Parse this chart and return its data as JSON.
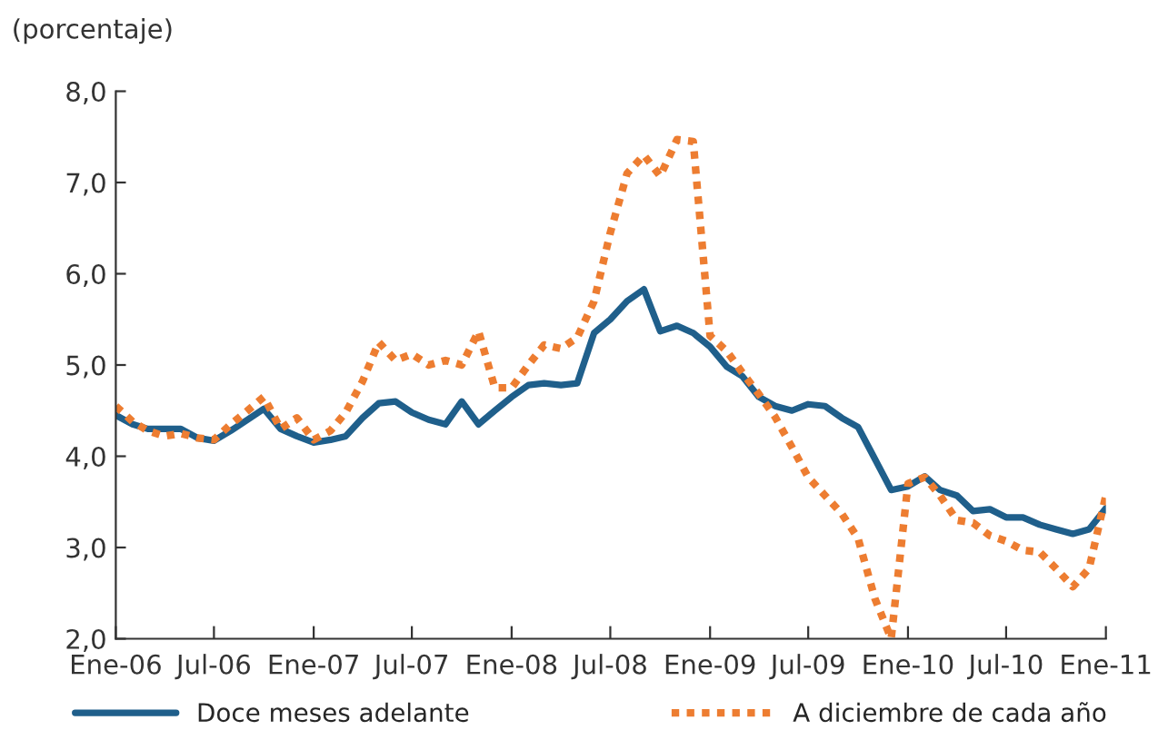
{
  "chart_data": {
    "type": "line",
    "ylabel": "(porcentaje)",
    "x": [
      "2006-01",
      "2006-02",
      "2006-03",
      "2006-04",
      "2006-05",
      "2006-06",
      "2006-07",
      "2006-08",
      "2006-09",
      "2006-10",
      "2006-11",
      "2006-12",
      "2007-01",
      "2007-02",
      "2007-03",
      "2007-04",
      "2007-05",
      "2007-06",
      "2007-07",
      "2007-08",
      "2007-09",
      "2007-10",
      "2007-11",
      "2007-12",
      "2008-01",
      "2008-02",
      "2008-03",
      "2008-04",
      "2008-05",
      "2008-06",
      "2008-07",
      "2008-08",
      "2008-09",
      "2008-10",
      "2008-11",
      "2008-12",
      "2009-01",
      "2009-02",
      "2009-03",
      "2009-04",
      "2009-05",
      "2009-06",
      "2009-07",
      "2009-08",
      "2009-09",
      "2009-10",
      "2009-11",
      "2009-12",
      "2010-01",
      "2010-02",
      "2010-03",
      "2010-04",
      "2010-05",
      "2010-06",
      "2010-07",
      "2010-08",
      "2010-09",
      "2010-10",
      "2010-11",
      "2010-12",
      "2011-01"
    ],
    "series": [
      {
        "name": "Doce meses adelante",
        "color": "#1f5f8b",
        "line_style": "solid",
        "values": [
          4.45,
          4.35,
          4.3,
          4.3,
          4.3,
          4.2,
          4.17,
          4.28,
          4.4,
          4.52,
          4.3,
          4.22,
          4.15,
          4.18,
          4.22,
          4.42,
          4.58,
          4.6,
          4.48,
          4.4,
          4.35,
          4.6,
          4.35,
          4.5,
          4.65,
          4.78,
          4.8,
          4.78,
          4.8,
          5.35,
          5.5,
          5.7,
          5.83,
          5.37,
          5.43,
          5.35,
          5.2,
          4.98,
          4.88,
          4.65,
          4.55,
          4.5,
          4.57,
          4.55,
          4.42,
          4.32,
          3.97,
          3.63,
          3.67,
          3.78,
          3.63,
          3.57,
          3.4,
          3.42,
          3.33,
          3.33,
          3.25,
          3.2,
          3.15,
          3.2,
          3.43
        ]
      },
      {
        "name": "A diciembre de cada año",
        "color": "#ed7d31",
        "line_style": "dotted",
        "values": [
          4.55,
          4.38,
          4.28,
          4.22,
          4.25,
          4.2,
          4.18,
          4.35,
          4.5,
          4.65,
          4.3,
          4.42,
          4.18,
          4.28,
          4.48,
          4.82,
          5.25,
          5.05,
          5.12,
          5.0,
          5.05,
          5.0,
          5.37,
          4.75,
          4.75,
          5.0,
          5.22,
          5.18,
          5.3,
          5.7,
          6.45,
          7.1,
          7.3,
          7.07,
          7.47,
          7.45,
          5.32,
          5.15,
          4.92,
          4.68,
          4.43,
          4.1,
          3.77,
          3.57,
          3.37,
          3.1,
          2.44,
          2.0,
          3.7,
          3.77,
          3.57,
          3.3,
          3.27,
          3.13,
          3.07,
          2.97,
          2.95,
          2.77,
          2.57,
          2.77,
          3.57
        ]
      }
    ],
    "ylim": [
      2,
      8
    ],
    "yticks": [
      {
        "value": 2,
        "label": "2,0"
      },
      {
        "value": 3,
        "label": "3,0"
      },
      {
        "value": 4,
        "label": "4,0"
      },
      {
        "value": 5,
        "label": "5,0"
      },
      {
        "value": 6,
        "label": "6,0"
      },
      {
        "value": 7,
        "label": "7,0"
      },
      {
        "value": 8,
        "label": "8,0"
      }
    ],
    "xlim": [
      "2006-01",
      "2011-01"
    ],
    "xticks": [
      {
        "value": "2006-01",
        "label": "Ene-06"
      },
      {
        "value": "2006-07",
        "label": "Jul-06"
      },
      {
        "value": "2007-01",
        "label": "Ene-07"
      },
      {
        "value": "2007-07",
        "label": "Jul-07"
      },
      {
        "value": "2008-01",
        "label": "Ene-08"
      },
      {
        "value": "2008-07",
        "label": "Jul-08"
      },
      {
        "value": "2009-01",
        "label": "Ene-09"
      },
      {
        "value": "2009-07",
        "label": "Jul-09"
      },
      {
        "value": "2010-01",
        "label": "Ene-10"
      },
      {
        "value": "2010-07",
        "label": "Jul-10"
      },
      {
        "value": "2011-01",
        "label": "Ene-11"
      }
    ],
    "grid": false,
    "legend": "bottom"
  }
}
